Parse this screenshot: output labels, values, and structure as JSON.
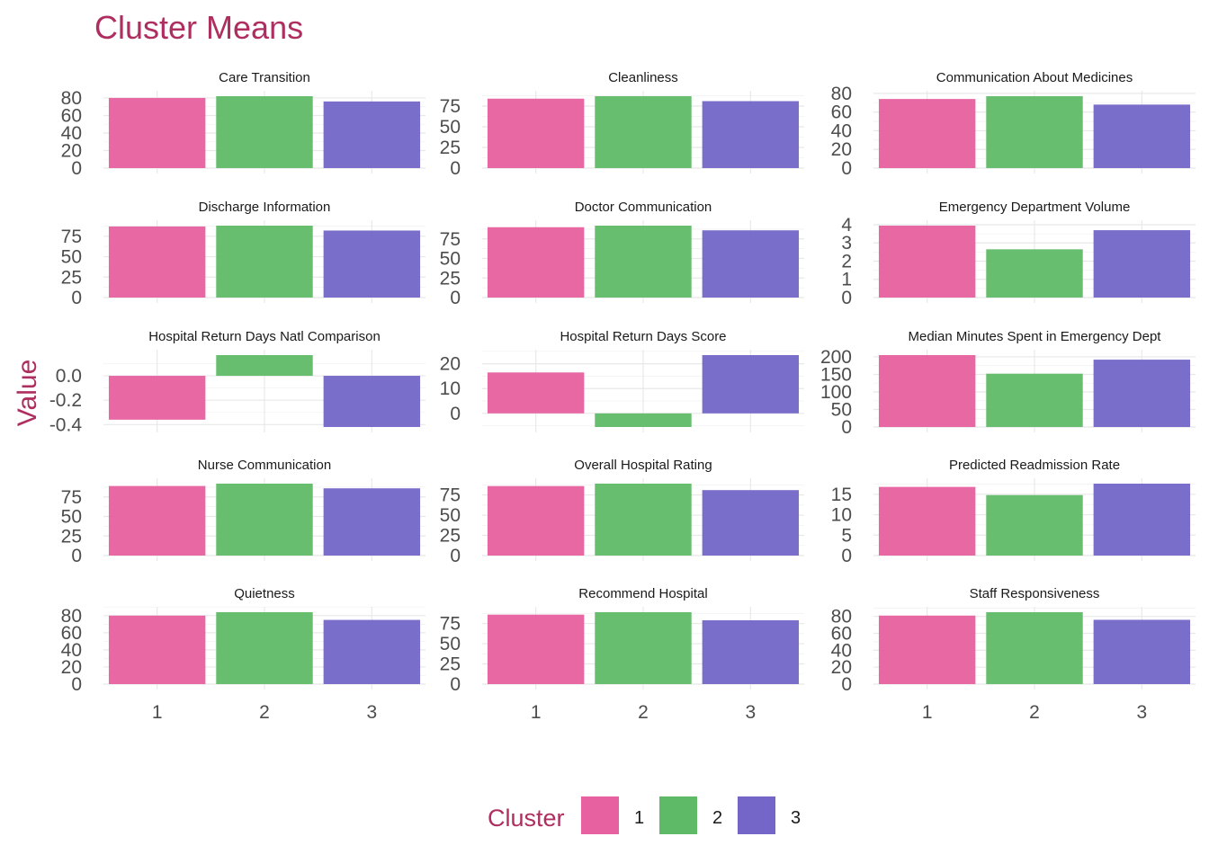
{
  "chart_data": {
    "type": "bar",
    "title": "Cluster Means",
    "ylabel": "Value",
    "xlabel": "",
    "categories": [
      "1",
      "2",
      "3"
    ],
    "legend": {
      "title": "Cluster",
      "position": "bottom",
      "entries": [
        "1",
        "2",
        "3"
      ]
    },
    "colors": {
      "1": "#E7609F",
      "2": "#5FBA67",
      "3": "#7366C8",
      "title": "#AE2F5F"
    },
    "grid": true,
    "panels": [
      {
        "name": "Care Transition",
        "values": [
          80,
          82,
          76
        ],
        "ylim": [
          0,
          82
        ],
        "yticks": [
          0,
          20,
          40,
          60,
          80
        ]
      },
      {
        "name": "Cleanliness",
        "values": [
          84,
          87,
          81
        ],
        "ylim": [
          0,
          87
        ],
        "yticks": [
          0,
          25,
          50,
          75
        ]
      },
      {
        "name": "Communication About Medicines",
        "values": [
          74,
          77,
          68
        ],
        "ylim": [
          0,
          77
        ],
        "yticks": [
          0,
          20,
          40,
          60,
          80
        ]
      },
      {
        "name": "Discharge Information",
        "values": [
          87,
          88,
          82
        ],
        "ylim": [
          0,
          88
        ],
        "yticks": [
          0,
          25,
          50,
          75
        ]
      },
      {
        "name": "Doctor Communication",
        "values": [
          90,
          92,
          86
        ],
        "ylim": [
          0,
          92
        ],
        "yticks": [
          0,
          25,
          50,
          75
        ]
      },
      {
        "name": "Emergency Department Volume",
        "values": [
          3.95,
          2.65,
          3.7
        ],
        "ylim": [
          0,
          3.95
        ],
        "yticks": [
          0,
          1,
          2,
          3,
          4
        ]
      },
      {
        "name": "Hospital Return Days Natl Comparison",
        "values": [
          -0.36,
          0.17,
          -0.42
        ],
        "ylim": [
          -0.42,
          0.17
        ],
        "yticks": [
          -0.4,
          -0.2,
          0.0
        ]
      },
      {
        "name": "Hospital Return Days Score",
        "values": [
          16.5,
          -5.5,
          23.5
        ],
        "ylim": [
          -5.5,
          23.5
        ],
        "yticks": [
          0,
          10,
          20
        ]
      },
      {
        "name": "Median Minutes Spent in Emergency Dept",
        "values": [
          205,
          152,
          192
        ],
        "ylim": [
          0,
          205
        ],
        "yticks": [
          0,
          50,
          100,
          150,
          200
        ]
      },
      {
        "name": "Nurse Communication",
        "values": [
          89,
          92,
          86
        ],
        "ylim": [
          0,
          92
        ],
        "yticks": [
          0,
          25,
          50,
          75
        ]
      },
      {
        "name": "Overall Hospital Rating",
        "values": [
          86,
          89,
          81
        ],
        "ylim": [
          0,
          89
        ],
        "yticks": [
          0,
          25,
          50,
          75
        ]
      },
      {
        "name": "Predicted Readmission Rate",
        "values": [
          16.8,
          14.8,
          17.6
        ],
        "ylim": [
          0,
          17.6
        ],
        "yticks": [
          0,
          5,
          10,
          15
        ]
      },
      {
        "name": "Quietness",
        "values": [
          80,
          84,
          75
        ],
        "ylim": [
          0,
          84
        ],
        "yticks": [
          0,
          20,
          40,
          60,
          80
        ]
      },
      {
        "name": "Recommend Hospital",
        "values": [
          86,
          89,
          79
        ],
        "ylim": [
          0,
          89
        ],
        "yticks": [
          0,
          25,
          50,
          75
        ]
      },
      {
        "name": "Staff Responsiveness",
        "values": [
          81,
          85,
          76
        ],
        "ylim": [
          0,
          85
        ],
        "yticks": [
          0,
          20,
          40,
          60,
          80
        ]
      }
    ]
  }
}
